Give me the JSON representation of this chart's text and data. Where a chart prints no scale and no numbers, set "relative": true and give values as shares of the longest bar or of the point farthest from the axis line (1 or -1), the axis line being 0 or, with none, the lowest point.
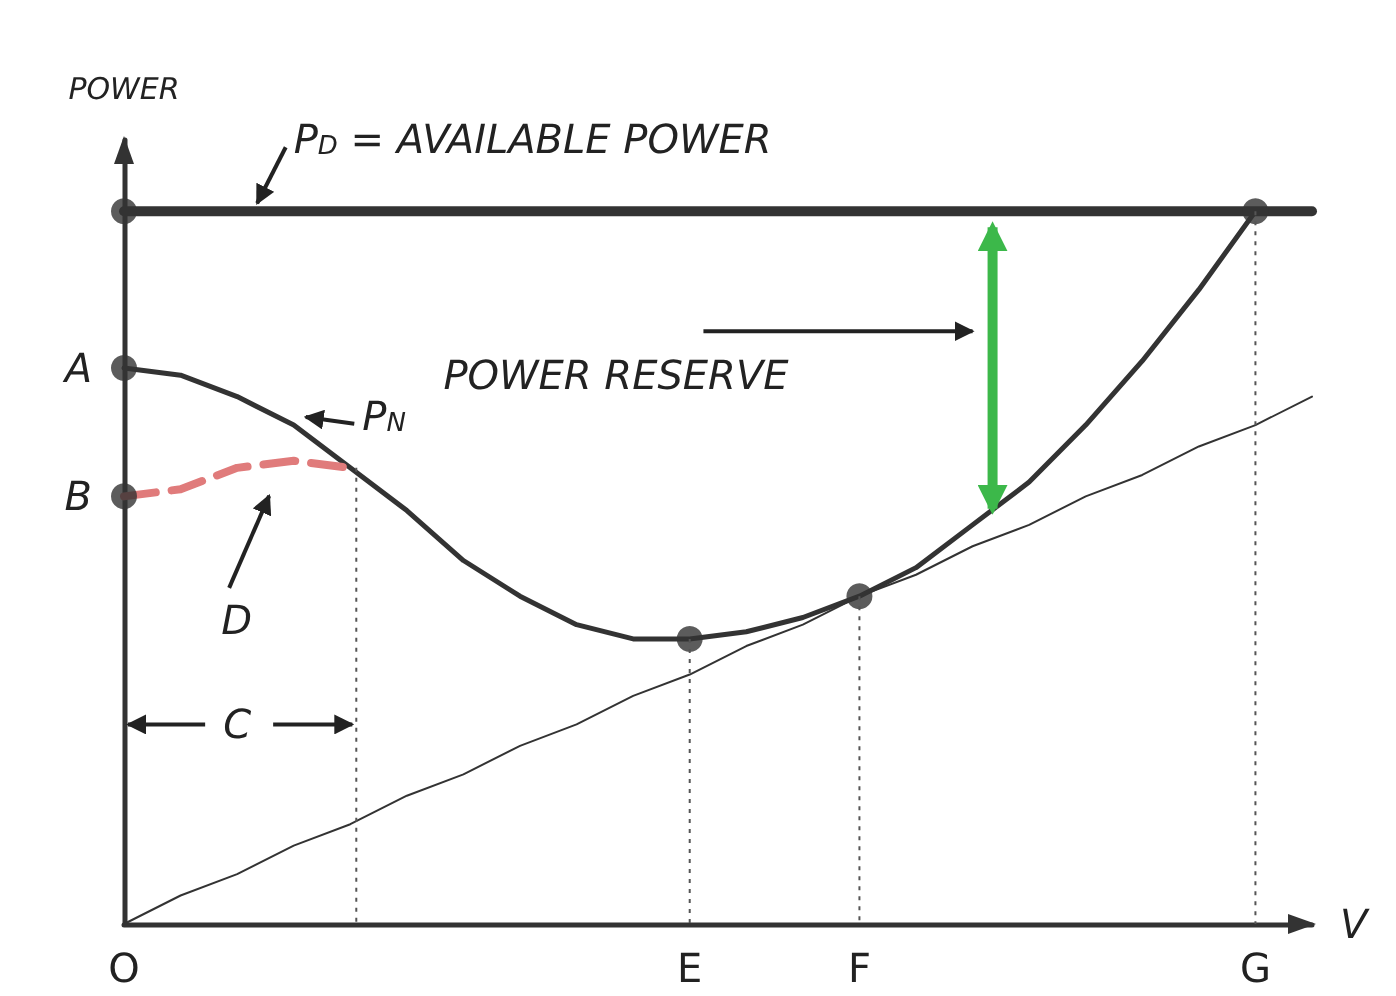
{
  "chart_data": {
    "type": "line",
    "relative": true,
    "ylabel": "POWER",
    "xlabel": "V",
    "categories": [
      "O",
      null,
      null,
      null,
      null,
      null,
      null,
      null,
      null,
      null,
      "E",
      null,
      null,
      "F",
      null,
      null,
      null,
      null,
      null,
      null,
      "G",
      null
    ],
    "series": [
      {
        "name": "P$_{D}$ = AVAILABLE POWER",
        "color": "#333333",
        "values": [
          1,
          1,
          1,
          1,
          1,
          1,
          1,
          1,
          1,
          1,
          1,
          1,
          1,
          1,
          1,
          1,
          1,
          1,
          1,
          1,
          1,
          1
        ]
      },
      {
        "name": "P$_{N}$",
        "color": "#333333",
        "values": [
          0.78,
          0.77,
          0.74,
          0.7,
          0.64,
          0.58,
          0.51,
          0.46,
          0.42,
          0.4,
          0.4,
          0.41,
          0.43,
          0.46,
          0.5,
          0.56,
          0.62,
          0.7,
          0.79,
          0.89,
          1,
          null
        ]
      },
      {
        "name": "D",
        "color": "#e07b7b",
        "line_style": "dashed",
        "values": [
          0.6,
          0.61,
          0.64,
          0.65,
          0.64,
          null,
          null,
          null,
          null,
          null,
          null,
          null,
          null,
          null,
          null,
          null,
          null,
          null,
          null,
          null,
          null,
          null
        ]
      },
      {
        "color": "#333333",
        "values": [
          0,
          0.04,
          0.07,
          0.11,
          0.14,
          0.18,
          0.21,
          0.25,
          0.28,
          0.32,
          0.35,
          0.39,
          0.42,
          0.46,
          0.49,
          0.53,
          0.56,
          0.6,
          0.63,
          0.67,
          0.7,
          0.74
        ]
      },
      {
        "type": "scatter",
        "color": "#333333",
        "values": [
          1,
          null,
          null,
          null,
          null,
          null,
          null,
          null,
          null,
          null,
          null,
          null,
          null,
          null,
          null,
          null,
          null,
          null,
          null,
          null,
          1,
          null
        ]
      },
      {
        "type": "scatter",
        "color": "#333333",
        "values": [
          0.78,
          null,
          null,
          null,
          null,
          null,
          null,
          null,
          null,
          null,
          0.4,
          null,
          null,
          0.46,
          null,
          null,
          null,
          null,
          null,
          null,
          null,
          null
        ]
      },
      {
        "type": "scatter",
        "color": "#333333",
        "values": [
          0.6,
          null,
          null,
          null,
          null,
          null,
          null,
          null,
          null,
          null,
          null,
          null,
          null,
          null,
          null,
          null,
          null,
          null,
          null,
          null,
          null,
          null
        ]
      }
    ],
    "annotations": [
      {
        "text": "A",
        "x": "O",
        "y": 0.78
      },
      {
        "text": "B",
        "x": "O",
        "y": 0.6
      },
      "POWER RESERVE",
      "C"
    ],
    "grid": "x",
    "legend": false
  }
}
